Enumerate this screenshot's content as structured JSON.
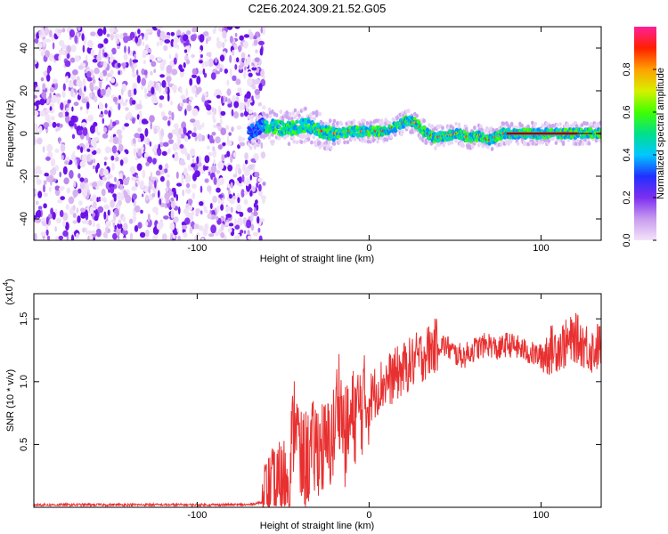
{
  "title": "C2E6.2024.309.21.52.G05",
  "chart_data": [
    {
      "type": "heatmap",
      "xlabel": "Height of straight line (km)",
      "ylabel": "Frequency (Hz)",
      "xlim": [
        -195,
        135
      ],
      "ylim": [
        -50,
        50
      ],
      "xticks": [
        -100,
        0,
        100
      ],
      "yticks": [
        -40,
        -20,
        0,
        20,
        40
      ],
      "xtick_labels": [
        "-100",
        "0",
        "100"
      ],
      "ytick_labels": [
        "-40",
        "-20",
        "0",
        "20",
        "40"
      ],
      "noise_region_x": [
        -195,
        -65
      ],
      "signal_track": [
        {
          "x": -70,
          "y": 0
        },
        {
          "x": -62,
          "y": 4
        },
        {
          "x": -55,
          "y": 3
        },
        {
          "x": -48,
          "y": 2
        },
        {
          "x": -42,
          "y": 3
        },
        {
          "x": -36,
          "y": 4
        },
        {
          "x": -30,
          "y": 2
        },
        {
          "x": -24,
          "y": 0
        },
        {
          "x": -18,
          "y": 0
        },
        {
          "x": -12,
          "y": 1
        },
        {
          "x": -6,
          "y": 1
        },
        {
          "x": 0,
          "y": 1
        },
        {
          "x": 6,
          "y": 1
        },
        {
          "x": 12,
          "y": 2
        },
        {
          "x": 18,
          "y": 4
        },
        {
          "x": 22,
          "y": 6
        },
        {
          "x": 27,
          "y": 5
        },
        {
          "x": 32,
          "y": 1
        },
        {
          "x": 38,
          "y": -2
        },
        {
          "x": 45,
          "y": -1
        },
        {
          "x": 52,
          "y": 0
        },
        {
          "x": 58,
          "y": -2
        },
        {
          "x": 64,
          "y": -1
        },
        {
          "x": 70,
          "y": -3
        },
        {
          "x": 78,
          "y": 0
        },
        {
          "x": 90,
          "y": 0
        },
        {
          "x": 110,
          "y": 0
        },
        {
          "x": 135,
          "y": 0
        }
      ],
      "colorbar": {
        "label": "Normalized spectral amplitude",
        "range": [
          0,
          1
        ],
        "ticks": [
          0.0,
          0.2,
          0.4,
          0.6,
          0.8
        ],
        "tick_labels": [
          "0.0",
          "0.2",
          "0.4",
          "0.6",
          "0.8"
        ],
        "colors": [
          "#f3e4f8",
          "#c99bef",
          "#7d2ef0",
          "#2030ff",
          "#00c8ff",
          "#00e08a",
          "#40ff00",
          "#d8f000",
          "#ffa000",
          "#ff2000",
          "#ff2098"
        ]
      }
    },
    {
      "type": "line",
      "xlabel": "Height of straight line (km)",
      "ylabel": "SNR (10 * v/v)",
      "multiplier_base": "(x10",
      "multiplier_exp": "4",
      "multiplier_close": ")",
      "xlim": [
        -195,
        135
      ],
      "ylim": [
        0,
        1.7
      ],
      "xticks": [
        -100,
        0,
        100
      ],
      "yticks": [
        0.5,
        1.0,
        1.5
      ],
      "xtick_labels": [
        "-100",
        "0",
        "100"
      ],
      "ytick_labels": [
        "0.5",
        "1.0",
        "1.5"
      ],
      "color": "#e83030",
      "series": [
        {
          "x": [
            -195,
            -70,
            -58,
            -50,
            -45,
            -43,
            -40,
            -35,
            -30,
            -25,
            -20,
            -18,
            -14,
            -10,
            -5,
            0,
            5,
            10,
            15,
            20,
            25,
            30,
            35,
            40,
            45,
            50,
            55,
            60,
            65,
            70,
            75,
            80,
            85,
            90,
            95,
            100,
            105,
            110,
            115,
            120,
            125,
            130,
            135
          ],
          "y": [
            0.02,
            0.02,
            0.05,
            0.15,
            0.45,
            0.8,
            0.35,
            0.4,
            0.5,
            0.45,
            0.6,
            0.95,
            0.55,
            0.7,
            0.8,
            0.85,
            0.95,
            1.0,
            1.05,
            1.1,
            1.15,
            1.2,
            1.25,
            1.3,
            1.28,
            1.22,
            1.2,
            1.25,
            1.28,
            1.3,
            1.25,
            1.3,
            1.28,
            1.25,
            1.22,
            1.2,
            1.25,
            1.28,
            1.3,
            1.35,
            1.3,
            1.25,
            1.3
          ]
        }
      ]
    }
  ]
}
